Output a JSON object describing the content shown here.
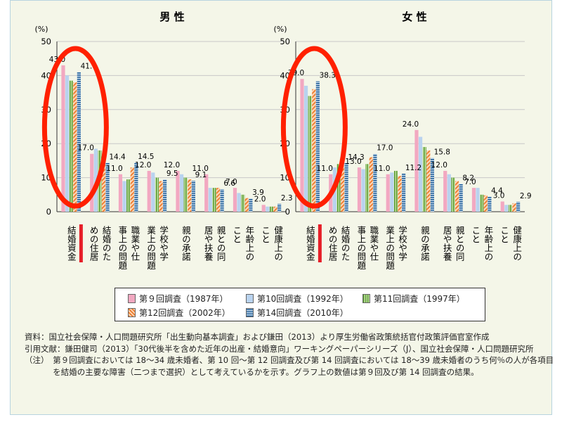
{
  "chart_data": {
    "type": "bar",
    "series": [
      {
        "name": "第９回調査（1987年）",
        "pattern": "solid",
        "color": "#f2a8c1"
      },
      {
        "name": "第10回調査（1992年）",
        "pattern": "solid",
        "color": "#b9d3ef"
      },
      {
        "name": "第11回調査（1997年）",
        "pattern": "vstripe",
        "color": "#6aaa3f"
      },
      {
        "name": "第12回調査（2002年）",
        "pattern": "diag",
        "color": "#f0843a"
      },
      {
        "name": "第14回調査（2010年）",
        "pattern": "hstripe",
        "color": "#2d6ea8"
      }
    ],
    "panels": [
      {
        "title": "男 性",
        "yunit": "(%)",
        "ylim": [
          0,
          50
        ],
        "yticks": [
          0,
          10,
          20,
          30,
          40,
          50
        ],
        "categories": [
          "結婚資金",
          "結婚のための住居",
          "職業や仕事上の問題",
          "学校や学業上の問題",
          "親の承諾",
          "親との同居や扶養",
          "年齢上のこと",
          "健康上のこと"
        ],
        "values": [
          [
            43.0,
            40.0,
            38.5,
            38.0,
            41.0
          ],
          [
            17.0,
            18.5,
            18.0,
            17.0,
            14.4
          ],
          [
            11.0,
            9.0,
            9.5,
            13.0,
            14.5
          ],
          [
            12.0,
            11.5,
            10.0,
            9.0,
            9.5
          ],
          [
            12.0,
            11.0,
            10.0,
            9.5,
            9.1
          ],
          [
            11.0,
            7.0,
            7.0,
            7.0,
            6.6
          ],
          [
            7.0,
            5.5,
            5.0,
            4.0,
            3.9
          ],
          [
            2.0,
            1.5,
            1.5,
            1.5,
            2.3
          ]
        ],
        "data_labels": [
          {
            "category": 0,
            "series": 0,
            "text": "43.0"
          },
          {
            "category": 0,
            "series": 4,
            "text": "41.0"
          },
          {
            "category": 1,
            "series": 0,
            "text": "17.0"
          },
          {
            "category": 1,
            "series": 4,
            "text": "14.4"
          },
          {
            "category": 2,
            "series": 0,
            "text": "11.0"
          },
          {
            "category": 2,
            "series": 4,
            "text": "14.5"
          },
          {
            "category": 3,
            "series": 0,
            "text": "12.0"
          },
          {
            "category": 3,
            "series": 4,
            "text": "9.5"
          },
          {
            "category": 4,
            "series": 0,
            "text": "12.0"
          },
          {
            "category": 4,
            "series": 4,
            "text": "9.1"
          },
          {
            "category": 5,
            "series": 0,
            "text": "11.0"
          },
          {
            "category": 5,
            "series": 4,
            "text": "6.6"
          },
          {
            "category": 6,
            "series": 0,
            "text": "7.0"
          },
          {
            "category": 6,
            "series": 4,
            "text": "3.9"
          },
          {
            "category": 7,
            "series": 0,
            "text": "2.0"
          },
          {
            "category": 7,
            "series": 4,
            "text": "2.3"
          }
        ]
      },
      {
        "title": "女 性",
        "yunit": "(%)",
        "ylim": [
          0,
          50
        ],
        "yticks": [
          0,
          10,
          20,
          30,
          40,
          50
        ],
        "categories": [
          "結婚資金",
          "結婚のための住居",
          "職業や仕事上の問題",
          "学校や学業上の問題",
          "親の承諾",
          "親との同居や扶養",
          "年齢上のこと",
          "健康上のこと"
        ],
        "values": [
          [
            39.0,
            37.0,
            34.0,
            36.0,
            38.3
          ],
          [
            11.0,
            13.0,
            14.0,
            13.5,
            14.3
          ],
          [
            13.0,
            12.5,
            14.0,
            16.0,
            17.0
          ],
          [
            11.0,
            11.5,
            12.0,
            10.5,
            11.2
          ],
          [
            24.0,
            22.0,
            19.0,
            18.0,
            15.8
          ],
          [
            12.0,
            11.0,
            10.0,
            9.0,
            8.2
          ],
          [
            7.0,
            7.0,
            5.0,
            4.8,
            4.4
          ],
          [
            3.0,
            2.0,
            2.0,
            2.5,
            2.9
          ]
        ],
        "data_labels": [
          {
            "category": 0,
            "series": 0,
            "text": "39.0"
          },
          {
            "category": 0,
            "series": 4,
            "text": "38.3"
          },
          {
            "category": 1,
            "series": 0,
            "text": "11.0"
          },
          {
            "category": 1,
            "series": 4,
            "text": "14.3"
          },
          {
            "category": 2,
            "series": 0,
            "text": "13.0"
          },
          {
            "category": 2,
            "series": 4,
            "text": "17.0"
          },
          {
            "category": 3,
            "series": 0,
            "text": "11.0"
          },
          {
            "category": 3,
            "series": 4,
            "text": "11.2"
          },
          {
            "category": 4,
            "series": 0,
            "text": "24.0"
          },
          {
            "category": 4,
            "series": 4,
            "text": "15.8"
          },
          {
            "category": 5,
            "series": 0,
            "text": "12.0"
          },
          {
            "category": 5,
            "series": 4,
            "text": "8.2"
          },
          {
            "category": 6,
            "series": 0,
            "text": "7.0"
          },
          {
            "category": 6,
            "series": 4,
            "text": "4.4"
          },
          {
            "category": 7,
            "series": 0,
            "text": "3.0"
          },
          {
            "category": 7,
            "series": 4,
            "text": "2.9"
          }
        ]
      }
    ],
    "annotations": {
      "circle_color": "#ff2000",
      "highlight_category": 0,
      "underline_color": "#e61e28"
    },
    "grid": true,
    "legend_placement": "bottom"
  },
  "notes": [
    {
      "key": "資料：",
      "text": "国立社会保障・人口問題研究所「出生動向基本調査」および鎌田（2013）より厚生労働省政策統括官付政策評価官室作成"
    },
    {
      "key": "引用文献：",
      "text": "鎌田健司（2013）「30代後半を含めた近年の出産・結婚意向」ワーキングペーパーシリーズ（J）、国立社会保障・人口問題研究所"
    },
    {
      "key": "（注）　",
      "text": "第９回調査においては 18～34 歳未婚者、第 10 回～第 12 回調査及び第 14 回調査においては 18～39 歳未婚者のうち何％の人が各項目を結婚の主要な障害（二つまで選択）として考えているかを示す。グラフ上の数値は第９回及び第 14 回調査の結果。"
    }
  ]
}
